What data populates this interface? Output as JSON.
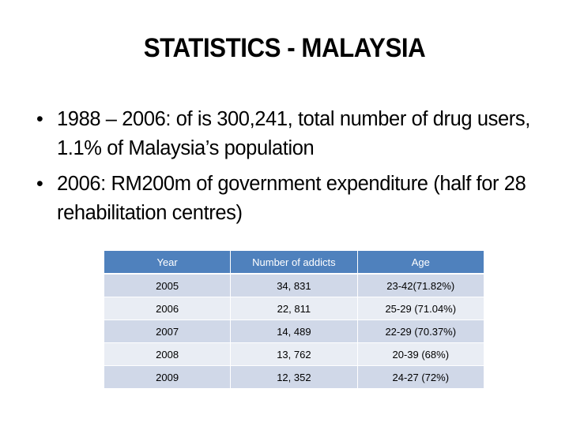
{
  "slide": {
    "title": "STATISTICS - MALAYSIA",
    "bullets": [
      "1988 – 2006: of is 300,241, total number of drug users, 1.1% of Malaysia’s population",
      "2006: RM200m of government expenditure (half for 28 rehabilitation centres)"
    ],
    "bullet_symbol": "•"
  },
  "table": {
    "headers": [
      "Year",
      "Number of addicts",
      "Age"
    ],
    "rows": [
      [
        "2005",
        "34, 831",
        "23-42(71.82%)"
      ],
      [
        "2006",
        "22, 811",
        "25-29 (71.04%)"
      ],
      [
        "2007",
        "14, 489",
        "22-29 (70.37%)"
      ],
      [
        "2008",
        "13, 762",
        "20-39 (68%)"
      ],
      [
        "2009",
        "12, 352",
        "24-27 (72%)"
      ]
    ],
    "header_color": "#4f81bd",
    "row_color_odd": "#d0d8e8",
    "row_color_even": "#e9edf4"
  }
}
